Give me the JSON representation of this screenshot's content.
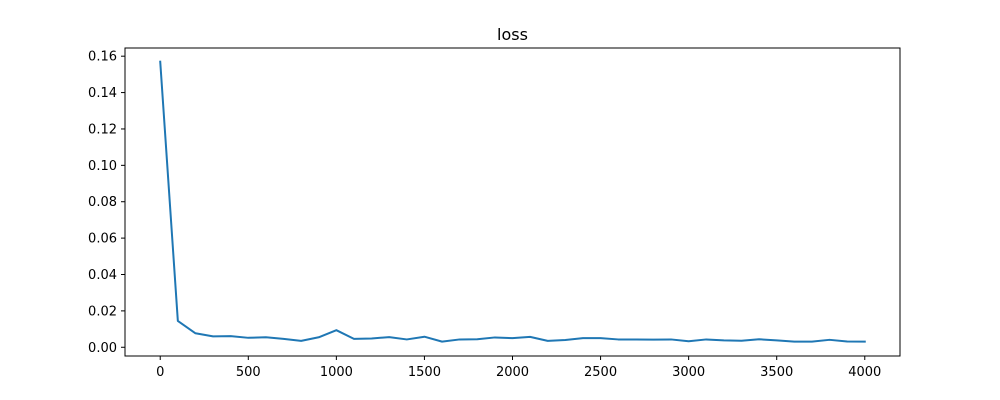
{
  "chart_data": {
    "type": "line",
    "title": "loss",
    "xlabel": "",
    "ylabel": "",
    "xlim": [
      -200,
      4200
    ],
    "ylim": [
      -0.0048,
      0.1645
    ],
    "grid": false,
    "legend": null,
    "x_ticks": [
      0,
      500,
      1000,
      1500,
      2000,
      2500,
      3000,
      3500,
      4000
    ],
    "x_tick_labels": [
      "0",
      "500",
      "1000",
      "1500",
      "2000",
      "2500",
      "3000",
      "3500",
      "4000"
    ],
    "y_ticks": [
      0.0,
      0.02,
      0.04,
      0.06,
      0.08,
      0.1,
      0.12,
      0.14,
      0.16
    ],
    "y_tick_labels": [
      "0.00",
      "0.02",
      "0.04",
      "0.06",
      "0.08",
      "0.10",
      "0.12",
      "0.14",
      "0.16"
    ],
    "series": [
      {
        "color": "#1f77b4",
        "x": [
          0,
          100,
          200,
          300,
          400,
          500,
          600,
          700,
          800,
          900,
          1000,
          1100,
          1200,
          1300,
          1400,
          1500,
          1600,
          1700,
          1800,
          1900,
          2000,
          2100,
          2200,
          2300,
          2400,
          2500,
          2600,
          2700,
          2800,
          2900,
          3000,
          3100,
          3200,
          3300,
          3400,
          3500,
          3600,
          3700,
          3800,
          3900,
          4000
        ],
        "y": [
          0.157,
          0.0145,
          0.0077,
          0.006,
          0.0061,
          0.0052,
          0.0055,
          0.0046,
          0.0035,
          0.0055,
          0.0094,
          0.0046,
          0.0048,
          0.0056,
          0.0043,
          0.0058,
          0.0031,
          0.0043,
          0.0044,
          0.0054,
          0.005,
          0.0057,
          0.0035,
          0.004,
          0.005,
          0.005,
          0.0043,
          0.0043,
          0.0042,
          0.0043,
          0.0033,
          0.0043,
          0.0038,
          0.0036,
          0.0044,
          0.0038,
          0.0031,
          0.0031,
          0.0041,
          0.0032,
          0.0031
        ]
      }
    ]
  }
}
